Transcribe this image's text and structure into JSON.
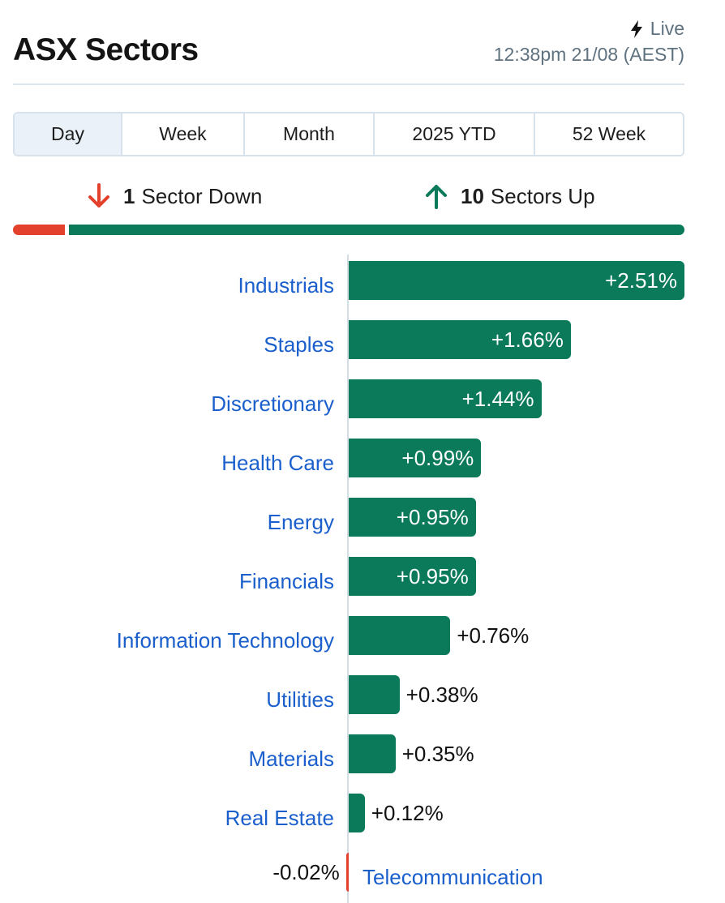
{
  "header": {
    "title": "ASX Sectors",
    "live_label": "Live",
    "timestamp": "12:38pm 21/08 (AEST)"
  },
  "tabs": [
    {
      "label": "Day",
      "active": true
    },
    {
      "label": "Week",
      "active": false
    },
    {
      "label": "Month",
      "active": false
    },
    {
      "label": "2025 YTD",
      "active": false
    },
    {
      "label": "52 Week",
      "active": false
    }
  ],
  "summary": {
    "down_count": "1",
    "down_label": "Sector Down",
    "up_count": "10",
    "up_label": "Sectors Up",
    "down_color": "#e4412c",
    "up_color": "#0a7a5a"
  },
  "chart_data": {
    "type": "bar",
    "orientation": "horizontal",
    "categories": [
      "Industrials",
      "Staples",
      "Discretionary",
      "Health Care",
      "Energy",
      "Financials",
      "Information Technology",
      "Utilities",
      "Materials",
      "Real Estate",
      "Telecommunication"
    ],
    "values": [
      2.51,
      1.66,
      1.44,
      0.99,
      0.95,
      0.95,
      0.76,
      0.38,
      0.35,
      0.12,
      -0.02
    ],
    "value_labels": [
      "+2.51%",
      "+1.66%",
      "+1.44%",
      "+0.99%",
      "+0.95%",
      "+0.95%",
      "+0.76%",
      "+0.38%",
      "+0.35%",
      "+0.12%",
      "-0.02%"
    ],
    "positive_color": "#0a7a5a",
    "negative_color": "#e4412c"
  }
}
